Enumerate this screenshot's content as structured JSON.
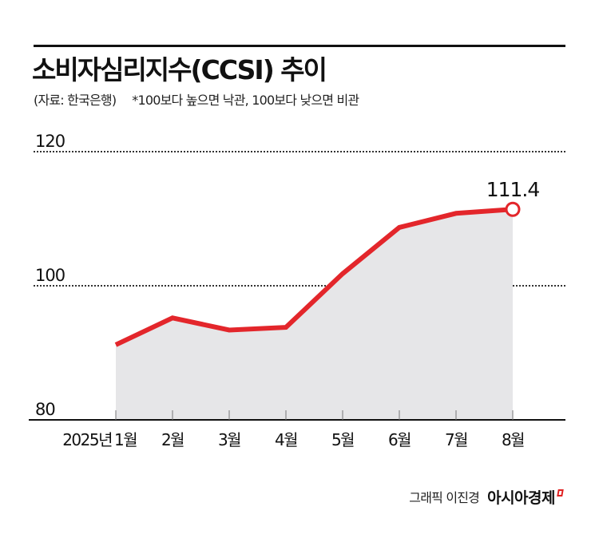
{
  "header": {
    "title": "소비자심리지수(CCSI) 추이",
    "source": "(자료: 한국은행)",
    "note": "*100보다 높으면 낙관, 100보다 낮으면 비관"
  },
  "footer": {
    "credit": "그래픽 이진경",
    "brand": "아시아경제"
  },
  "colors": {
    "line": "#e3262b",
    "area": "#e6e6e8",
    "axis": "#111111",
    "grid": "#333333"
  },
  "chart_data": {
    "type": "area",
    "title": "소비자심리지수(CCSI) 추이",
    "subtitle": "(자료: 한국은행) *100보다 높으면 낙관, 100보다 낮으면 비관",
    "xlabel": "2025년",
    "ylabel": "",
    "categories": [
      "1월",
      "2월",
      "3월",
      "4월",
      "5월",
      "6월",
      "7월",
      "8월"
    ],
    "series": [
      {
        "name": "CCSI",
        "values": [
          91.2,
          95.2,
          93.4,
          93.8,
          101.8,
          108.7,
          110.8,
          111.4
        ]
      }
    ],
    "y_ticks": [
      80,
      100,
      120
    ],
    "ylim": [
      80,
      120
    ],
    "grid": "dotted horizontal lines at 100 and 120",
    "annotations": [
      {
        "category": "8월",
        "label": "111.4",
        "marker": "open-circle"
      }
    ],
    "legend": "none"
  },
  "axis": {
    "year_label": "2025년",
    "y_labels": [
      "120",
      "100",
      "80"
    ],
    "last_value_label": "111.4"
  }
}
